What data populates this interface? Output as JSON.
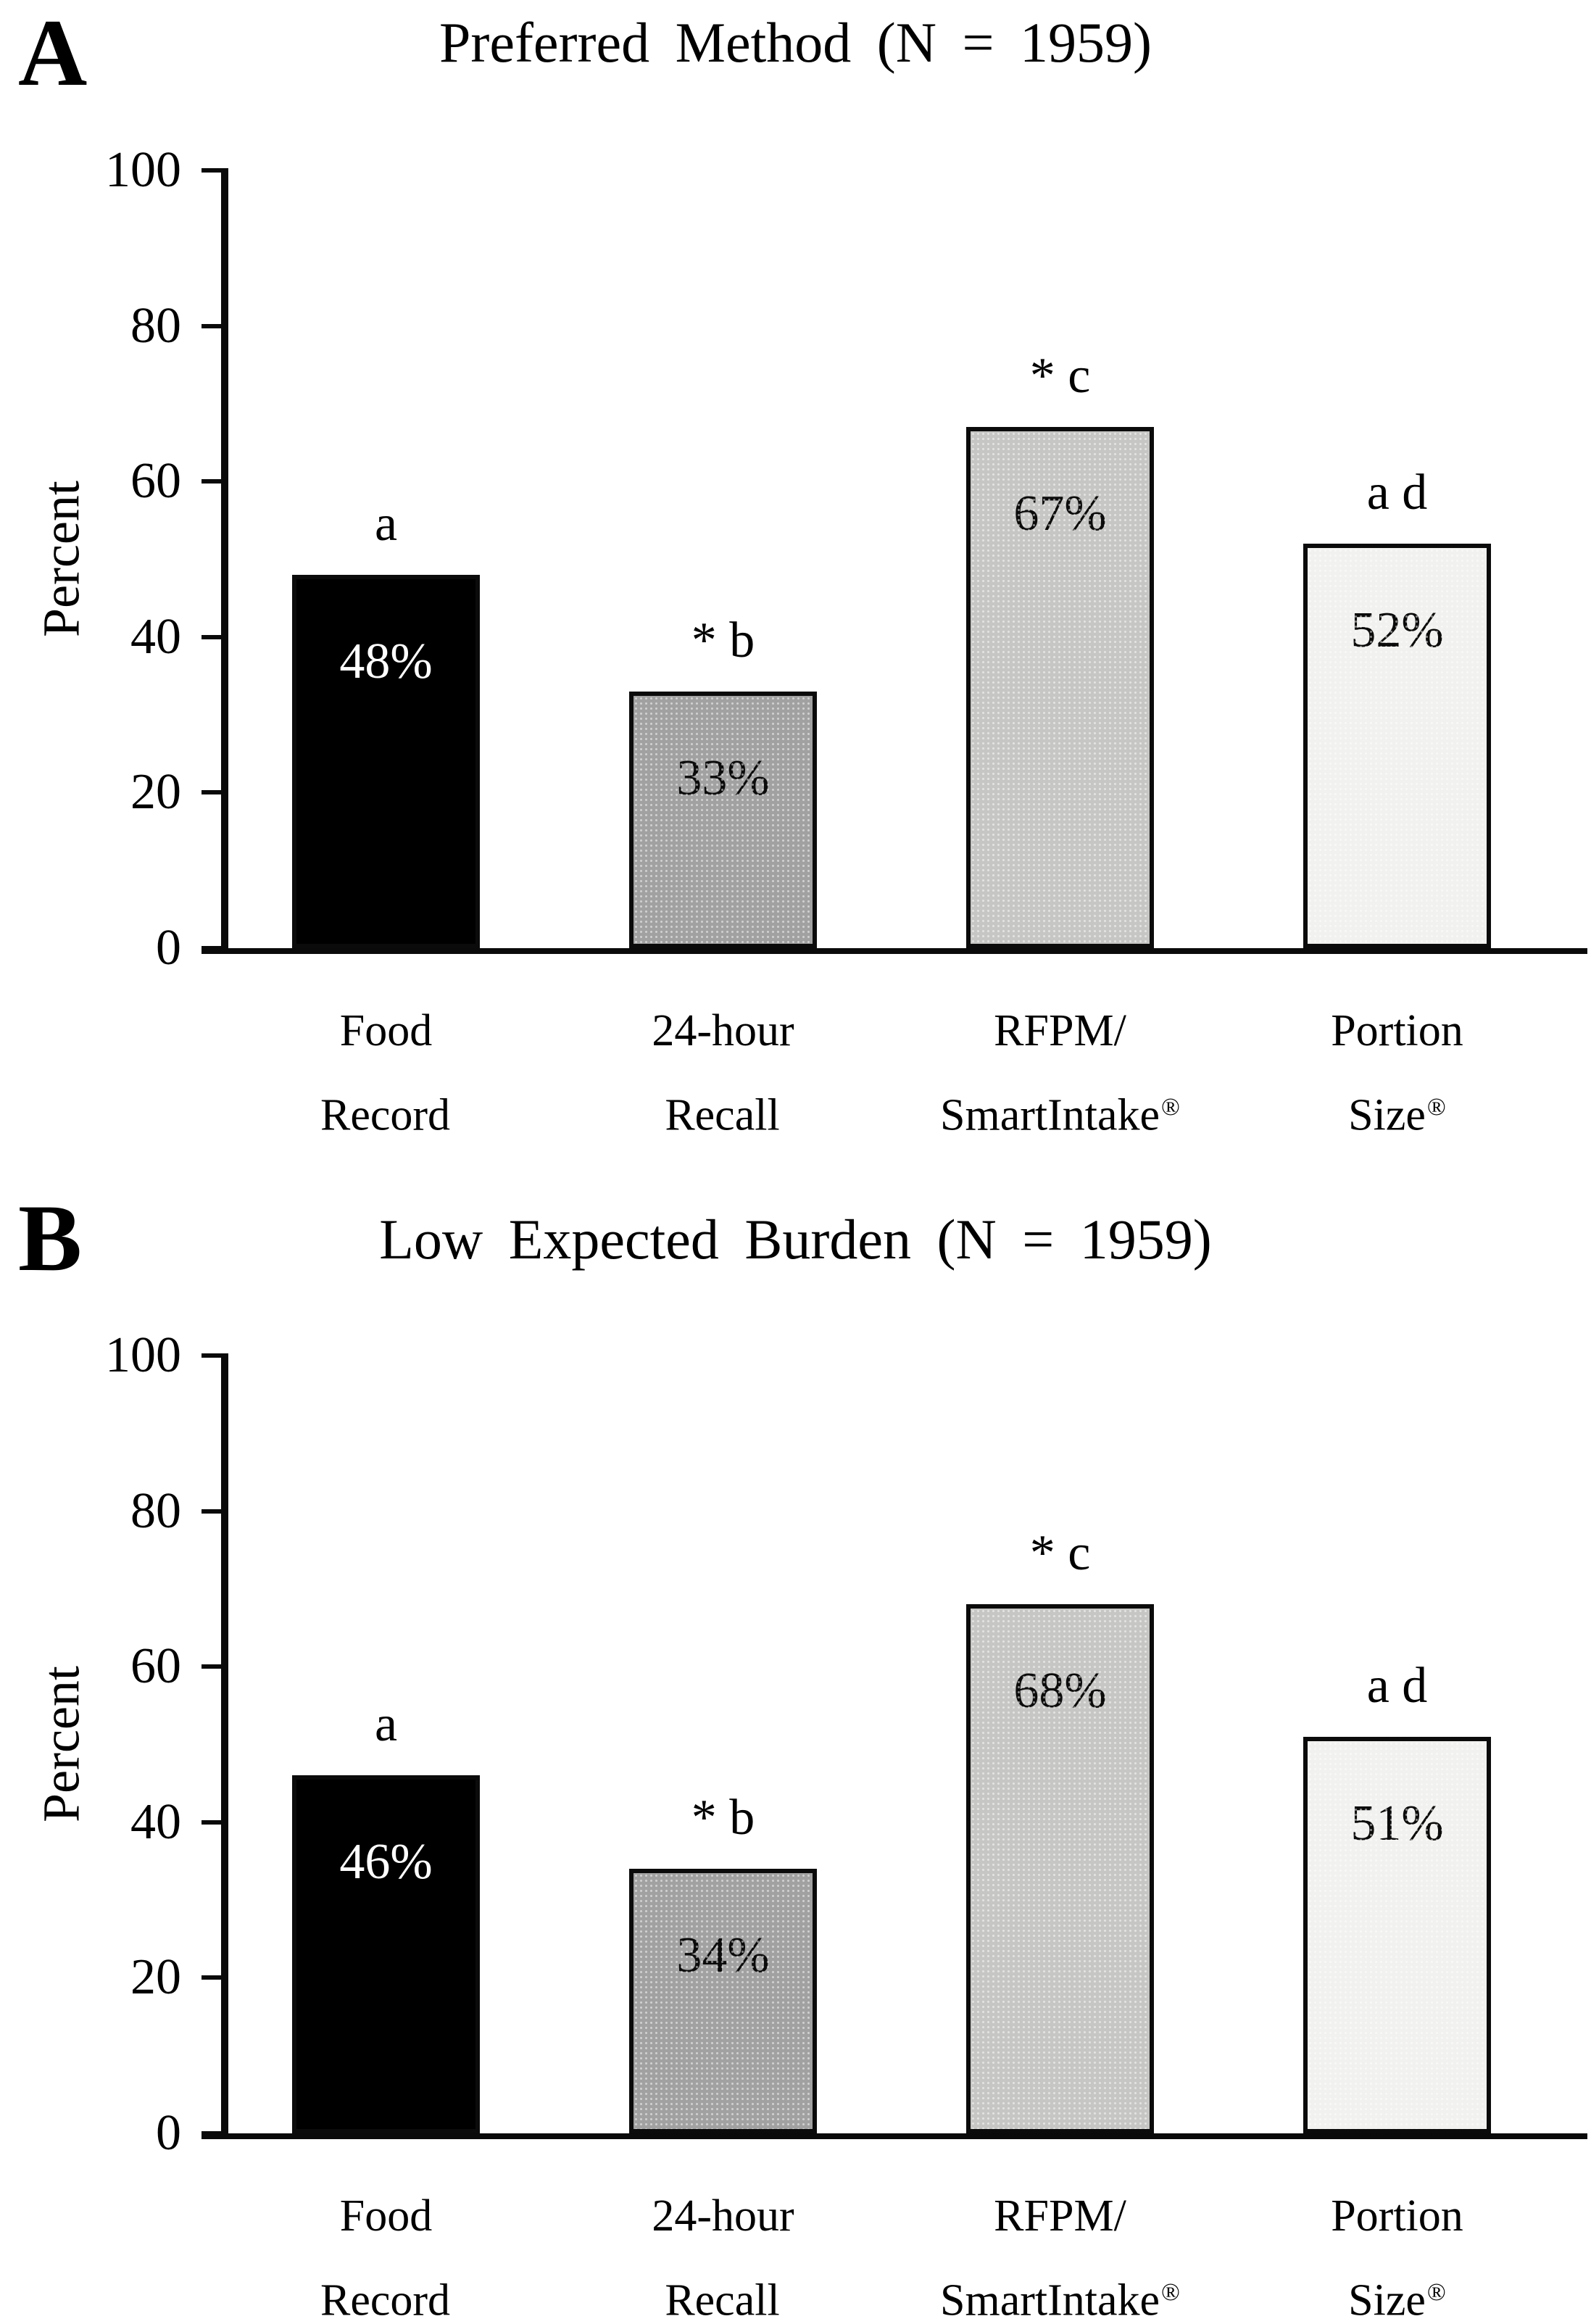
{
  "figure": {
    "panels": [
      {
        "panel_label": "A",
        "title": "Preferred Method (N = 1959)",
        "ylabel": "Percent",
        "yticks": [
          "100",
          "80",
          "60",
          "40",
          "20",
          "0"
        ],
        "bars": [
          {
            "cat1": "Food",
            "cat2": "Record",
            "cat2_sup": "",
            "value": 48,
            "value_label": "48%",
            "annotation": "a",
            "fill": "#000000",
            "label_color": "#ffffff"
          },
          {
            "cat1": "24-hour",
            "cat2": "Recall",
            "cat2_sup": "",
            "value": 33,
            "value_label": "33%",
            "annotation": "* b",
            "fill": "#a1a1a1",
            "label_color": "#0b0b0b"
          },
          {
            "cat1": "RFPM/",
            "cat2": "SmartIntake",
            "cat2_sup": "®",
            "value": 67,
            "value_label": "67%",
            "annotation": "* c",
            "fill": "#c6c6c4",
            "label_color": "#0b0b0b"
          },
          {
            "cat1": "Portion",
            "cat2": "Size",
            "cat2_sup": "®",
            "value": 52,
            "value_label": "52%",
            "annotation": "a d",
            "fill": "#f1f1ef",
            "label_color": "#0b0b0b"
          }
        ]
      },
      {
        "panel_label": "B",
        "title": "Low Expected Burden (N = 1959)",
        "ylabel": "Percent",
        "yticks": [
          "100",
          "80",
          "60",
          "40",
          "20",
          "0"
        ],
        "bars": [
          {
            "cat1": "Food",
            "cat2": "Record",
            "cat2_sup": "",
            "value": 46,
            "value_label": "46%",
            "annotation": "a",
            "fill": "#000000",
            "label_color": "#ffffff"
          },
          {
            "cat1": "24-hour",
            "cat2": "Recall",
            "cat2_sup": "",
            "value": 34,
            "value_label": "34%",
            "annotation": "* b",
            "fill": "#a1a1a1",
            "label_color": "#0b0b0b"
          },
          {
            "cat1": "RFPM/",
            "cat2": "SmartIntake",
            "cat2_sup": "®",
            "value": 68,
            "value_label": "68%",
            "annotation": "* c",
            "fill": "#c6c6c4",
            "label_color": "#0b0b0b"
          },
          {
            "cat1": "Portion",
            "cat2": "Size",
            "cat2_sup": "®",
            "value": 51,
            "value_label": "51%",
            "annotation": "a d",
            "fill": "#f1f1ef",
            "label_color": "#0b0b0b"
          }
        ]
      }
    ]
  },
  "chart_data": [
    {
      "type": "bar",
      "panel": "A",
      "title": "Preferred Method (N = 1959)",
      "categories": [
        "Food Record",
        "24-hour Recall",
        "RFPM/SmartIntake®",
        "Portion Size®"
      ],
      "values": [
        48,
        33,
        67,
        52
      ],
      "value_labels": [
        "48%",
        "33%",
        "67%",
        "52%"
      ],
      "bar_annotations": [
        "a",
        "* b",
        "* c",
        "a d"
      ],
      "bar_colors": [
        "#000000",
        "#a1a1a1",
        "#c6c6c4",
        "#f1f1ef"
      ],
      "xlabel": "",
      "ylabel": "Percent",
      "ylim": [
        0,
        100
      ],
      "yticks": [
        0,
        20,
        40,
        60,
        80,
        100
      ],
      "grid": false,
      "legend": false
    },
    {
      "type": "bar",
      "panel": "B",
      "title": "Low Expected Burden (N = 1959)",
      "categories": [
        "Food Record",
        "24-hour Recall",
        "RFPM/SmartIntake®",
        "Portion Size®"
      ],
      "values": [
        46,
        34,
        68,
        51
      ],
      "value_labels": [
        "46%",
        "34%",
        "68%",
        "51%"
      ],
      "bar_annotations": [
        "a",
        "* b",
        "* c",
        "a d"
      ],
      "bar_colors": [
        "#000000",
        "#a1a1a1",
        "#c6c6c4",
        "#f1f1ef"
      ],
      "xlabel": "",
      "ylabel": "Percent",
      "ylim": [
        0,
        100
      ],
      "yticks": [
        0,
        20,
        40,
        60,
        80,
        100
      ],
      "grid": false,
      "legend": false
    }
  ]
}
